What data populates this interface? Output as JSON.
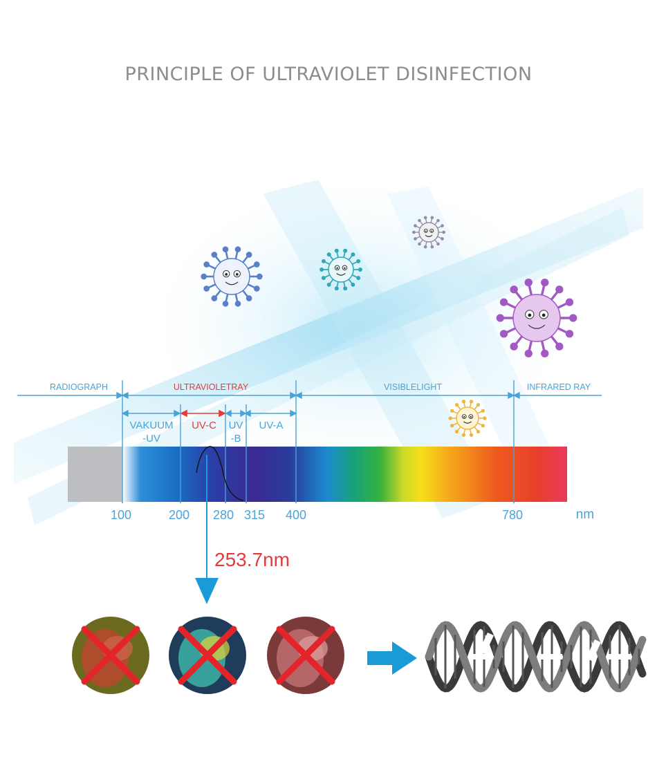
{
  "title": "PRINCIPLE OF ULTRAVIOLET DISINFECTION",
  "regions": {
    "radiograph": "RADIOGRAPH",
    "ultraviolet": "ULTRAVIOLETRAY",
    "visible": "VISIBLELIGHT",
    "infrared": "INFRARED RAY"
  },
  "bands": {
    "vakuum_line1": "VAKUUM",
    "vakuum_line2": "-UV",
    "uvc": "UV-C",
    "uvb_line1": "UV",
    "uvb_line2": "-B",
    "uva": "UV-A"
  },
  "ticks": [
    "100",
    "200",
    "280",
    "315",
    "400",
    "780"
  ],
  "unit": "nm",
  "peak_label": "253.7nm",
  "colors": {
    "accent_blue": "#4aa3d8",
    "uvc_red": "#e23b3b",
    "arrow_blue": "#1a9ad6",
    "title_gray": "#8c8c8c"
  },
  "icons": [
    "virus-icon",
    "dna-helix-icon",
    "cross-mark-icon",
    "arrow-right-icon"
  ]
}
